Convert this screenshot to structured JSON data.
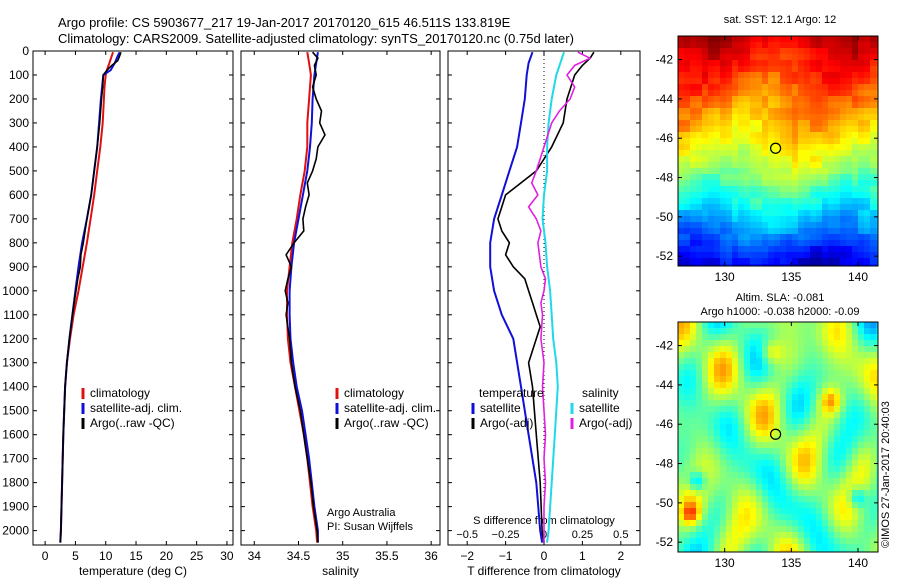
{
  "figure": {
    "title_line1": "Argo profile: CS 5903677_217 19-Jan-2017 20170120_615 46.511S 133.819E",
    "title_line2": "Climatology: CARS2009. Satellite-adjusted climatology: synTS_20170120.nc (0.75d later)",
    "side_note": "©IMOS 27-Jan-2017 20:40:03",
    "notes": [
      "Argo Australia",
      "PI: Susan Wijffels"
    ]
  },
  "colors": {
    "climatology": "#e01010",
    "satellite": "#1010d8",
    "argo": "#000000",
    "sal_satellite": "#20d8e8",
    "sal_argo": "#e020e0",
    "dotted": "#000000"
  },
  "chart_data": [
    {
      "id": "temperature",
      "type": "line",
      "xlabel": "temperature (deg C)",
      "ylabel": "",
      "xlim": [
        -2,
        31
      ],
      "ylim": [
        2060,
        0
      ],
      "xticks": [
        0,
        5,
        10,
        15,
        20,
        25,
        30
      ],
      "xticklabels": [
        "0",
        "5",
        "10",
        "15",
        "20",
        "25",
        "30"
      ],
      "yticks": [
        0,
        100,
        200,
        300,
        400,
        500,
        600,
        700,
        800,
        900,
        1000,
        1100,
        1200,
        1300,
        1400,
        1500,
        1600,
        1700,
        1800,
        1900,
        2000
      ],
      "yticklabels": [
        "0",
        "100",
        "200",
        "300",
        "400",
        "500",
        "600",
        "700",
        "800",
        "900",
        "1000",
        "1100",
        "1200",
        "1300",
        "1400",
        "1500",
        "1600",
        "1700",
        "1800",
        "1900",
        "2000"
      ],
      "legend": [
        "climatology",
        "satellite-adj. clim.",
        "Argo(..raw -QC)"
      ],
      "series": [
        {
          "name": "climatology",
          "color": "#e01010",
          "width": 2,
          "y": [
            5,
            20,
            50,
            80,
            100,
            150,
            200,
            300,
            400,
            500,
            600,
            700,
            800,
            900,
            1000,
            1100,
            1200,
            1300,
            1400,
            1600,
            1800,
            2000,
            2050
          ],
          "x": [
            11.2,
            11.0,
            10.6,
            10.2,
            10.0,
            9.8,
            9.7,
            9.5,
            9.1,
            8.6,
            8.1,
            7.5,
            6.9,
            6.2,
            5.5,
            4.7,
            4.1,
            3.6,
            3.3,
            3.0,
            2.8,
            2.6,
            2.5
          ]
        },
        {
          "name": "satellite-adj. clim.",
          "color": "#1010d8",
          "width": 2,
          "y": [
            5,
            20,
            50,
            80,
            100,
            150,
            200,
            300,
            400,
            500,
            600,
            700,
            800,
            900,
            1000,
            1100,
            1200,
            1300,
            1400,
            1600,
            1800,
            2000,
            2050
          ],
          "x": [
            12.3,
            12.0,
            11.5,
            10.8,
            9.6,
            9.4,
            9.2,
            8.9,
            8.6,
            8.1,
            7.6,
            6.9,
            6.1,
            5.5,
            5.0,
            4.5,
            4.0,
            3.6,
            3.3,
            3.0,
            2.8,
            2.6,
            2.5
          ]
        },
        {
          "name": "Argo(..raw -QC)",
          "color": "#000000",
          "width": 1.6,
          "y": [
            5,
            20,
            40,
            60,
            80,
            100,
            150,
            200,
            300,
            400,
            500,
            600,
            700,
            750,
            800,
            850,
            900,
            950,
            1000,
            1050,
            1100,
            1200,
            1300,
            1400,
            1600,
            1800,
            2000,
            2050
          ],
          "x": [
            12.5,
            12.3,
            12.0,
            11.0,
            10.2,
            9.6,
            9.5,
            9.3,
            9.0,
            8.6,
            8.1,
            7.6,
            6.9,
            6.6,
            6.3,
            5.9,
            5.8,
            5.4,
            5.1,
            4.8,
            4.5,
            4.0,
            3.6,
            3.3,
            3.0,
            2.8,
            2.6,
            2.5
          ]
        }
      ]
    },
    {
      "id": "salinity",
      "type": "line",
      "xlabel": "salinity",
      "ylabel": "",
      "xlim": [
        33.85,
        36.1
      ],
      "ylim": [
        2060,
        0
      ],
      "xticks": [
        34,
        34.5,
        35,
        35.5,
        36
      ],
      "xticklabels": [
        "34",
        "34.5",
        "35",
        "35.5",
        "36"
      ],
      "legend": [
        "climatology",
        "satellite-adj. clim.",
        "Argo(..raw -QC)"
      ],
      "series": [
        {
          "name": "climatology",
          "color": "#e01010",
          "width": 2,
          "y": [
            5,
            50,
            100,
            200,
            300,
            400,
            500,
            600,
            700,
            800,
            900,
            1000,
            1100,
            1200,
            1300,
            1400,
            1500,
            1600,
            1700,
            1800,
            1900,
            2000,
            2050
          ],
          "x": [
            34.6,
            34.62,
            34.64,
            34.62,
            34.6,
            34.6,
            34.57,
            34.52,
            34.48,
            34.43,
            34.4,
            34.37,
            34.37,
            34.38,
            34.41,
            34.46,
            34.51,
            34.56,
            34.6,
            34.63,
            34.66,
            34.7,
            34.71
          ]
        },
        {
          "name": "satellite-adj. clim.",
          "color": "#1010d8",
          "width": 2,
          "y": [
            5,
            50,
            100,
            200,
            300,
            400,
            500,
            600,
            700,
            800,
            900,
            1000,
            1100,
            1200,
            1300,
            1400,
            1500,
            1600,
            1700,
            1800,
            1900,
            2000,
            2050
          ],
          "x": [
            34.72,
            34.7,
            34.68,
            34.66,
            34.65,
            34.63,
            34.6,
            34.55,
            34.5,
            34.45,
            34.42,
            34.4,
            34.4,
            34.41,
            34.44,
            34.48,
            34.54,
            34.58,
            34.62,
            34.65,
            34.68,
            34.72,
            34.72
          ]
        },
        {
          "name": "Argo(..raw -QC)",
          "color": "#000000",
          "width": 1.6,
          "y": [
            5,
            30,
            60,
            100,
            150,
            200,
            250,
            300,
            350,
            400,
            450,
            500,
            550,
            600,
            650,
            700,
            750,
            800,
            850,
            900,
            950,
            1000,
            1050,
            1100,
            1200,
            1300,
            1400,
            1500,
            1600,
            1700,
            1800,
            1900,
            2000,
            2050
          ],
          "x": [
            34.66,
            34.72,
            34.68,
            34.7,
            34.66,
            34.7,
            34.76,
            34.74,
            34.8,
            34.72,
            34.7,
            34.66,
            34.6,
            34.62,
            34.58,
            34.55,
            34.56,
            34.45,
            34.36,
            34.42,
            34.38,
            34.35,
            34.38,
            34.36,
            34.4,
            34.42,
            34.46,
            34.52,
            34.56,
            34.6,
            34.64,
            34.67,
            34.71,
            34.72
          ]
        }
      ]
    },
    {
      "id": "difference",
      "type": "line",
      "xlabel": "T difference from climatology",
      "x2label": "S difference from climatology",
      "xlim": [
        -2.5,
        2.5
      ],
      "ylim": [
        2060,
        0
      ],
      "xticks": [
        -2,
        -1,
        0,
        1,
        2
      ],
      "xticklabels": [
        "−2",
        "−1",
        "0",
        "1",
        "2"
      ],
      "x2lim": [
        -0.625,
        0.625
      ],
      "x2ticks": [
        -0.5,
        -0.25,
        0,
        0.25,
        0.5
      ],
      "x2ticklabels": [
        "−0.5",
        "−0.25",
        "0",
        "0.25",
        "0.5"
      ],
      "legend_groups": [
        {
          "title": "temperature",
          "items": [
            "satellite",
            "Argo(-adj)"
          ]
        },
        {
          "title": "salinity",
          "items": [
            "satellite",
            "Argo(-adj)"
          ]
        }
      ],
      "series": [
        {
          "name": "temperature satellite",
          "axis": "T",
          "color": "#1010d8",
          "width": 2,
          "y": [
            5,
            50,
            100,
            200,
            300,
            400,
            500,
            600,
            700,
            800,
            900,
            1000,
            1100,
            1200,
            1400,
            1600,
            1800,
            2000,
            2050
          ],
          "x": [
            -0.3,
            -0.4,
            -0.45,
            -0.5,
            -0.6,
            -0.7,
            -0.9,
            -1.1,
            -1.3,
            -1.4,
            -1.4,
            -1.3,
            -1.1,
            -0.8,
            -0.6,
            -0.4,
            -0.2,
            -0.1,
            -0.05
          ]
        },
        {
          "name": "temperature Argo(-adj)",
          "axis": "T",
          "color": "#000000",
          "width": 1.6,
          "y": [
            5,
            30,
            60,
            100,
            200,
            300,
            400,
            500,
            550,
            600,
            650,
            700,
            750,
            800,
            850,
            900,
            950,
            1000,
            1050,
            1100,
            1150,
            1200,
            1300,
            1400,
            1600,
            1800,
            2000,
            2050
          ],
          "x": [
            1.3,
            1.2,
            1.0,
            0.8,
            0.6,
            0.5,
            0.2,
            -0.2,
            -0.6,
            -1.0,
            -1.1,
            -1.2,
            -1.1,
            -0.9,
            -1.0,
            -0.8,
            -0.5,
            -0.4,
            -0.3,
            -0.2,
            -0.1,
            -0.2,
            -0.4,
            -0.3,
            -0.2,
            -0.1,
            -0.05,
            0.0
          ]
        },
        {
          "name": "salinity satellite",
          "axis": "S",
          "color": "#20d8e8",
          "width": 2,
          "y": [
            5,
            100,
            200,
            300,
            400,
            500,
            600,
            700,
            800,
            900,
            1000,
            1100,
            1200,
            1300,
            1400,
            1600,
            1800,
            2000,
            2050
          ],
          "x": [
            0.13,
            0.08,
            0.05,
            0.03,
            0.02,
            0.02,
            0.0,
            -0.01,
            0.01,
            0.02,
            0.04,
            0.05,
            0.06,
            0.08,
            0.09,
            0.07,
            0.05,
            0.03,
            0.02
          ]
        },
        {
          "name": "salinity Argo(-adj)",
          "axis": "S",
          "color": "#e020e0",
          "width": 1.6,
          "y": [
            5,
            30,
            60,
            100,
            150,
            200,
            250,
            300,
            400,
            500,
            550,
            600,
            650,
            700,
            750,
            800,
            850,
            900,
            950,
            1000,
            1050,
            1100,
            1200,
            1300,
            1400,
            1500,
            1600,
            1700,
            1800,
            1900,
            2000,
            2050
          ],
          "x": [
            0.22,
            0.3,
            0.2,
            0.15,
            0.2,
            0.17,
            0.1,
            0.05,
            0.0,
            -0.05,
            -0.08,
            -0.04,
            -0.1,
            -0.05,
            -0.02,
            -0.04,
            -0.03,
            -0.02,
            0.01,
            0.0,
            -0.02,
            -0.01,
            -0.02,
            0.0,
            -0.01,
            0.0,
            0.01,
            0.0,
            0.01,
            0.0,
            0.0,
            0.0
          ]
        }
      ]
    },
    {
      "id": "sst_map",
      "type": "heatmap",
      "title": "sat. SST: 12.1  Argo: 12",
      "xlim": [
        126.5,
        141.5
      ],
      "ylim": [
        -52.5,
        -40.8
      ],
      "xticks": [
        130,
        135,
        140
      ],
      "xticklabels": [
        "130",
        "135",
        "140"
      ],
      "yticks": [
        -42,
        -44,
        -46,
        -48,
        -50,
        -52
      ],
      "yticklabels": [
        "-42",
        "-44",
        "-46",
        "-48",
        "-50",
        "-52"
      ],
      "marker": {
        "lon": 133.819,
        "lat": -46.511
      }
    },
    {
      "id": "sla_map",
      "type": "heatmap",
      "title_line1": "Altim. SLA: -0.081",
      "title_line2": "Argo h1000: -0.038 h2000: -0.09",
      "xlim": [
        126.5,
        141.5
      ],
      "ylim": [
        -52.5,
        -40.8
      ],
      "xticks": [
        130,
        135,
        140
      ],
      "xticklabels": [
        "130",
        "135",
        "140"
      ],
      "yticks": [
        -42,
        -44,
        -46,
        -48,
        -50,
        -52
      ],
      "yticklabels": [
        "-42",
        "-44",
        "-46",
        "-48",
        "-50",
        "-52"
      ],
      "marker": {
        "lon": 133.819,
        "lat": -46.511
      }
    }
  ]
}
